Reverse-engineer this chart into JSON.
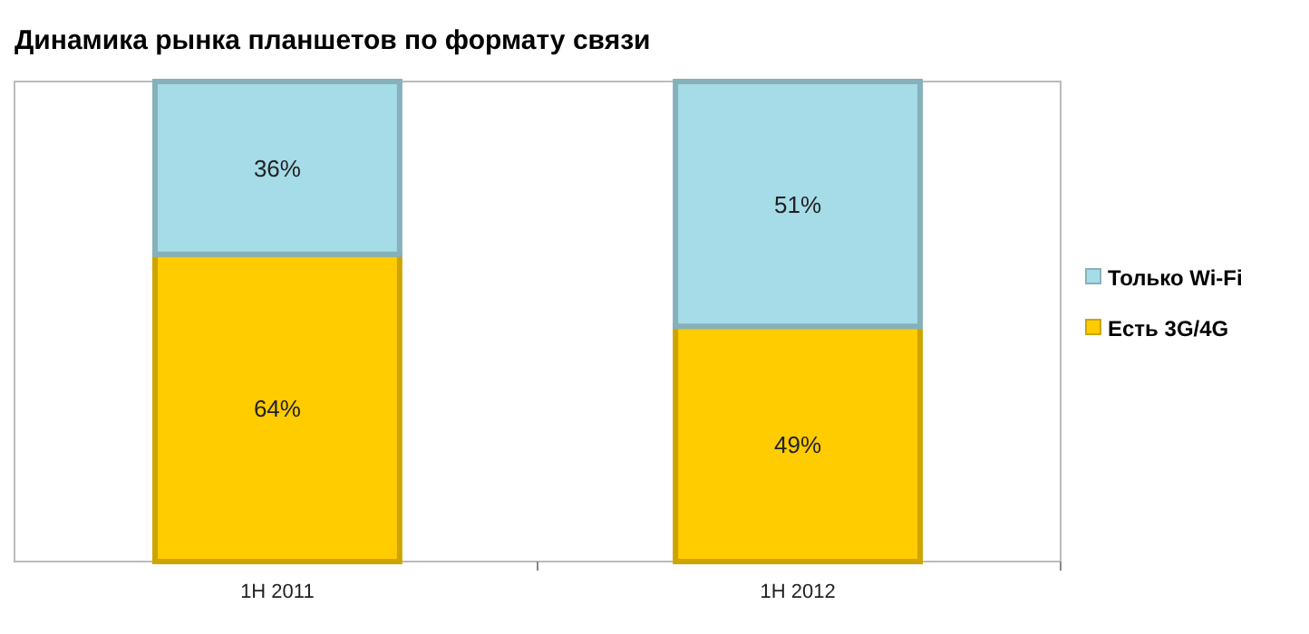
{
  "chart_data": {
    "type": "bar",
    "stacked": true,
    "title": "Динамика рынка планшетов по формату связи",
    "categories": [
      "1H 2011",
      "1H 2012"
    ],
    "series": [
      {
        "name": "Есть 3G/4G",
        "color": "#ffcc00",
        "values": [
          64,
          49
        ],
        "value_labels": [
          "64%",
          "49%"
        ]
      },
      {
        "name": "Только Wi-Fi",
        "color": "#a6dbe8",
        "values": [
          36,
          51
        ],
        "value_labels": [
          "36%",
          "51%"
        ]
      }
    ],
    "legend": "right",
    "grid": false
  }
}
